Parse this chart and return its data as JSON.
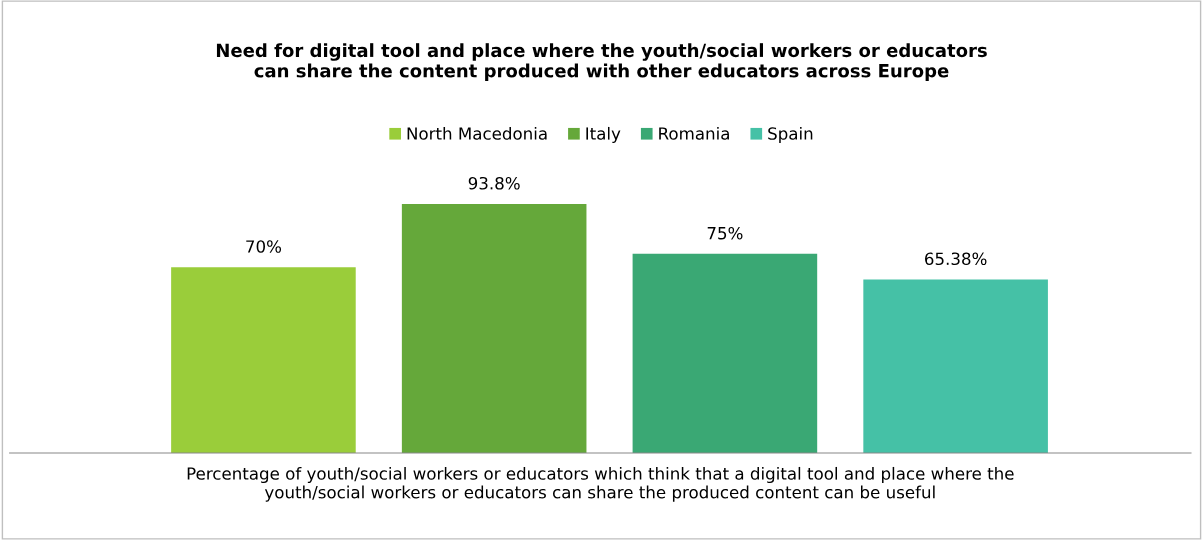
{
  "chart_data": {
    "type": "bar",
    "title": "Need for digital tool and place where the youth/social workers or educators\ncan share the content produced with other educators across Europe",
    "xlabel": "Percentage of youth/social workers or educators which think that a digital tool and place where the\nyouth/social workers or educators can share the produced content can be useful",
    "categories": [
      null
    ],
    "series": [
      {
        "name": "North Macedonia",
        "color": "#9acd3a",
        "values": [
          70
        ],
        "value_labels": [
          "70%"
        ]
      },
      {
        "name": "Italy",
        "color": "#65a83a",
        "values": [
          93.8
        ],
        "value_labels": [
          "93.8%"
        ]
      },
      {
        "name": "Romania",
        "color": "#3aa874",
        "values": [
          75
        ],
        "value_labels": [
          "75%"
        ]
      },
      {
        "name": "Spain",
        "color": "#45c1a6",
        "values": [
          65.38
        ],
        "value_labels": [
          "65.38%"
        ]
      }
    ],
    "tick_labels": false,
    "grid": false,
    "legend": "top"
  }
}
